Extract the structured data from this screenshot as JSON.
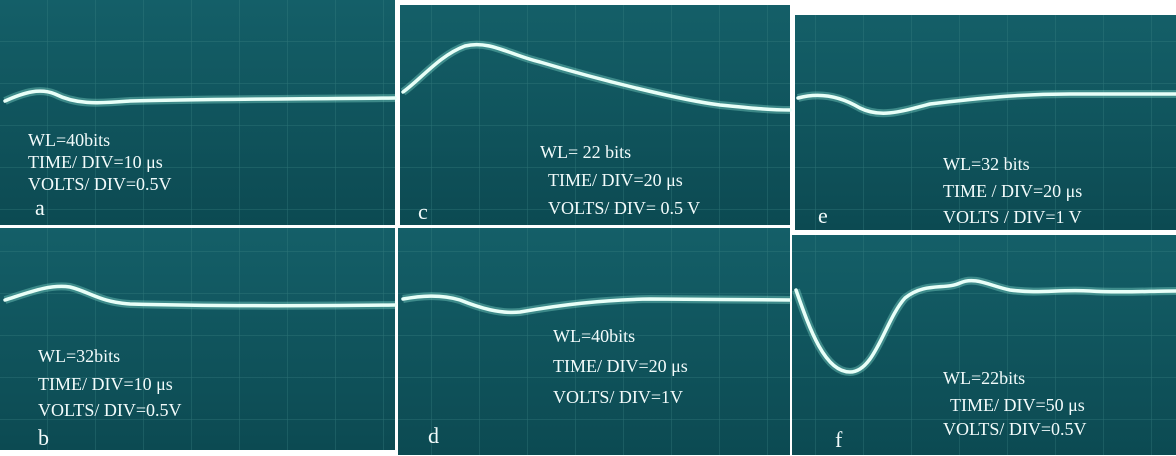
{
  "panels": [
    {
      "wl": "WL=40bits",
      "time": "TIME/ DIV=10 μs",
      "volts": "VOLTS/ DIV=0.5V",
      "letter": "a"
    },
    {
      "wl": "WL=32bits",
      "time": "TIME/ DIV=10 μs",
      "volts": "VOLTS/ DIV=0.5V",
      "letter": "b"
    },
    {
      "wl": "WL= 22 bits",
      "time": "TIME/ DIV=20 μs",
      "volts": "VOLTS/ DIV= 0.5 V",
      "letter": "c"
    },
    {
      "wl": "WL=40bits",
      "time": "TIME/ DIV=20 μs",
      "volts": "VOLTS/ DIV=1V",
      "letter": "d"
    },
    {
      "wl": "WL=32 bits",
      "time": "TIME / DIV=20 μs",
      "volts": "VOLTS / DIV=1 V",
      "letter": "e"
    },
    {
      "wl": "WL=22bits",
      "time": "TIME/ DIV=50 μs",
      "volts": "VOLTS/ DIV=0.5V",
      "letter": "f"
    }
  ]
}
